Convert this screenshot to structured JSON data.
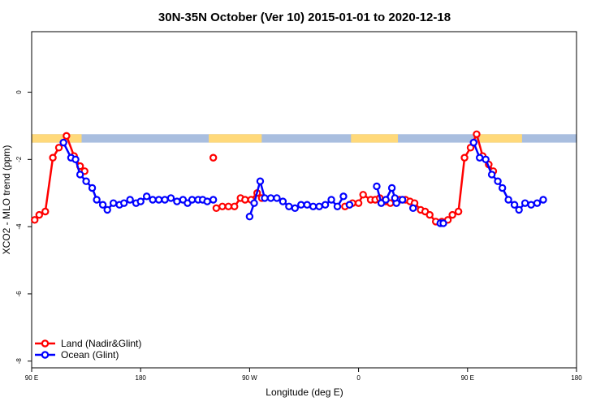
{
  "chart_data": {
    "type": "line",
    "title": "30N-35N October (Ver 10)   2015-01-01 to 2020-12-18",
    "xlabel": "Longitude (deg E)",
    "ylabel": "XCO2 - MLO trend (ppm)",
    "xlim": [
      90,
      450
    ],
    "ylim": [
      -8.2,
      1.8
    ],
    "x_ticks": [
      {
        "value": 90,
        "label": "90 E"
      },
      {
        "value": 162,
        "label": "180"
      },
      {
        "value": 234,
        "label": "90 W"
      },
      {
        "value": 306,
        "label": "0"
      },
      {
        "value": 378,
        "label": "90 E"
      },
      {
        "value": 450,
        "label": "180"
      }
    ],
    "y_ticks": [
      0,
      -2,
      -4,
      -6,
      -8
    ],
    "grid": false,
    "legend_position": "bottom-left",
    "land_ocean_band": {
      "y_range": [
        -1.5,
        -1.25
      ],
      "land_color": "#ffd97a",
      "ocean_color": "#a9bedf",
      "land_segments": [
        [
          90,
          123
        ],
        [
          207,
          242
        ],
        [
          301,
          332
        ],
        [
          386,
          414
        ]
      ]
    },
    "series": [
      {
        "name": "Land (Nadir&Glint)",
        "color": "#ff0000",
        "segments": [
          [
            [
              92,
              -3.8
            ],
            [
              95,
              -3.65
            ],
            [
              99,
              -3.55
            ],
            [
              104,
              -1.95
            ],
            [
              108,
              -1.65
            ],
            [
              113,
              -1.3
            ],
            [
              118,
              -1.9
            ],
            [
              122,
              -2.2
            ],
            [
              125,
              -2.35
            ]
          ],
          [
            [
              210,
              -1.95
            ]
          ],
          [
            [
              212,
              -3.45
            ],
            [
              216,
              -3.4
            ],
            [
              220,
              -3.4
            ],
            [
              224,
              -3.4
            ],
            [
              228,
              -3.15
            ],
            [
              231,
              -3.2
            ],
            [
              235,
              -3.2
            ],
            [
              239,
              -3.0
            ],
            [
              242,
              -3.15
            ]
          ],
          [
            [
              297,
              -3.4
            ],
            [
              300,
              -3.35
            ],
            [
              302,
              -3.3
            ],
            [
              306,
              -3.3
            ],
            [
              309,
              -3.05
            ],
            [
              314,
              -3.2
            ],
            [
              317,
              -3.2
            ],
            [
              320,
              -3.15
            ],
            [
              324,
              -3.25
            ],
            [
              327,
              -3.3
            ],
            [
              330,
              -3.2
            ],
            [
              333,
              -3.2
            ],
            [
              337,
              -3.2
            ],
            [
              340,
              -3.25
            ],
            [
              343,
              -3.3
            ],
            [
              347,
              -3.5
            ],
            [
              350,
              -3.55
            ],
            [
              353,
              -3.65
            ],
            [
              357,
              -3.85
            ],
            [
              361,
              -3.85
            ],
            [
              365,
              -3.8
            ],
            [
              368,
              -3.65
            ],
            [
              372,
              -3.55
            ],
            [
              376,
              -1.95
            ],
            [
              380,
              -1.65
            ],
            [
              384,
              -1.25
            ],
            [
              388,
              -1.9
            ],
            [
              392,
              -2.15
            ],
            [
              395,
              -2.35
            ]
          ]
        ]
      },
      {
        "name": "Ocean (Glint)",
        "color": "#0000ff",
        "segments": [
          [
            [
              111,
              -1.5
            ],
            [
              116,
              -1.95
            ],
            [
              119,
              -2.0
            ],
            [
              122,
              -2.45
            ],
            [
              126,
              -2.65
            ],
            [
              130,
              -2.85
            ],
            [
              133,
              -3.2
            ],
            [
              137,
              -3.35
            ],
            [
              140,
              -3.5
            ],
            [
              144,
              -3.3
            ],
            [
              148,
              -3.35
            ],
            [
              151,
              -3.3
            ],
            [
              155,
              -3.2
            ],
            [
              159,
              -3.3
            ],
            [
              162,
              -3.25
            ],
            [
              166,
              -3.1
            ],
            [
              170,
              -3.2
            ],
            [
              174,
              -3.2
            ],
            [
              178,
              -3.2
            ],
            [
              182,
              -3.15
            ],
            [
              186,
              -3.25
            ],
            [
              190,
              -3.2
            ],
            [
              193,
              -3.3
            ],
            [
              196,
              -3.2
            ],
            [
              200,
              -3.2
            ],
            [
              203,
              -3.2
            ],
            [
              206,
              -3.25
            ],
            [
              210,
              -3.2
            ]
          ],
          [
            [
              234,
              -3.7
            ],
            [
              237,
              -3.3
            ],
            [
              241,
              -2.65
            ],
            [
              244,
              -3.15
            ],
            [
              248,
              -3.15
            ],
            [
              252,
              -3.15
            ],
            [
              256,
              -3.25
            ],
            [
              260,
              -3.4
            ],
            [
              264,
              -3.45
            ],
            [
              268,
              -3.35
            ],
            [
              272,
              -3.35
            ],
            [
              276,
              -3.4
            ],
            [
              280,
              -3.4
            ],
            [
              284,
              -3.35
            ],
            [
              288,
              -3.2
            ],
            [
              292,
              -3.4
            ],
            [
              296,
              -3.1
            ]
          ],
          [
            [
              300,
              -3.35
            ]
          ],
          [
            [
              318,
              -2.8
            ],
            [
              321,
              -3.3
            ],
            [
              324,
              -3.2
            ],
            [
              328,
              -2.85
            ],
            [
              331,
              -3.3
            ],
            [
              335,
              -3.2
            ]
          ],
          [
            [
              330,
              -3.15
            ]
          ],
          [
            [
              342,
              -3.45
            ]
          ],
          [
            [
              360,
              -3.9
            ],
            [
              362,
              -3.9
            ]
          ],
          [
            [
              382,
              -1.5
            ],
            [
              386,
              -1.95
            ],
            [
              390,
              -2.0
            ],
            [
              394,
              -2.45
            ],
            [
              398,
              -2.65
            ],
            [
              401,
              -2.85
            ],
            [
              405,
              -3.2
            ],
            [
              409,
              -3.35
            ],
            [
              412,
              -3.5
            ],
            [
              416,
              -3.3
            ],
            [
              420,
              -3.35
            ],
            [
              424,
              -3.3
            ],
            [
              428,
              -3.2
            ]
          ]
        ]
      }
    ]
  }
}
